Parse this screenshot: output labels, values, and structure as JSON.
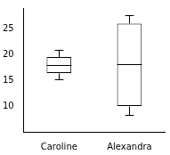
{
  "chart_data": {
    "type": "box",
    "categories": [
      "Caroline",
      "Alexandra"
    ],
    "values": [
      {
        "min": 15.2,
        "q1": 16.4,
        "median": 18,
        "q3": 19.5,
        "max": 20.8
      },
      {
        "min": 8.3,
        "q1": 10,
        "median": 18.1,
        "q3": 26,
        "max": 27.7
      }
    ],
    "color": "#000000",
    "ylim": [
      5,
      29
    ],
    "yticks": [
      10,
      15,
      20,
      25
    ],
    "grid": false
  }
}
